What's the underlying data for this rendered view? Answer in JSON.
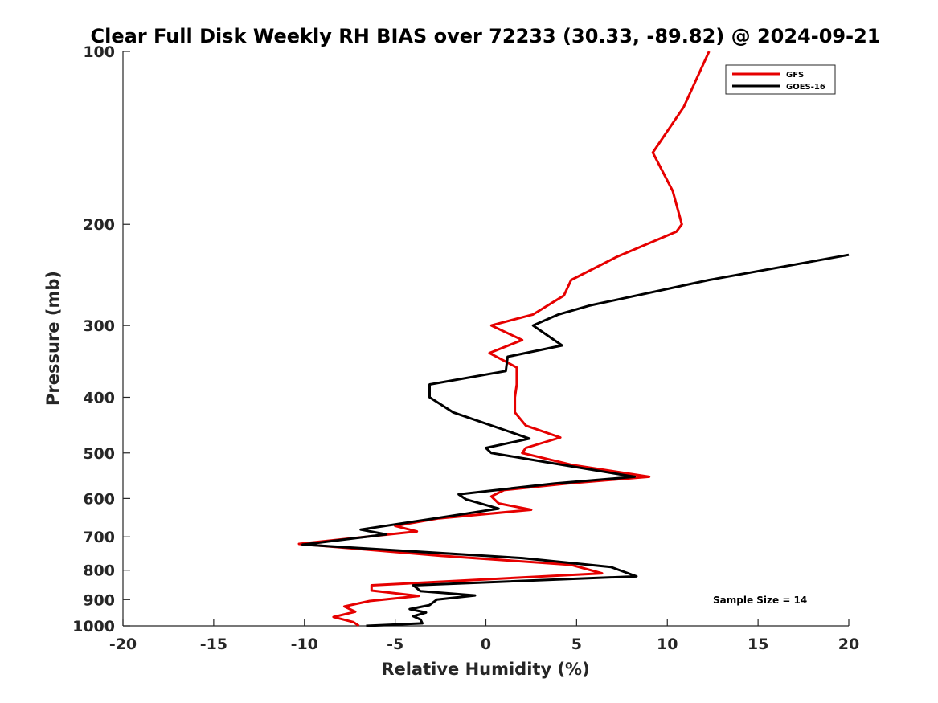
{
  "chart_data": {
    "type": "line",
    "title": "Clear Full Disk Weekly RH BIAS over 72233 (30.33, -89.82) @ 2024-09-21",
    "xlabel": "Relative Humidity (%)",
    "ylabel": "Pressure (mb)",
    "xlim": [
      -20,
      20
    ],
    "ylim": [
      100,
      1000
    ],
    "y_scale": "log",
    "y_reversed": true,
    "x_ticks": [
      -20,
      -15,
      -10,
      -5,
      0,
      5,
      10,
      15,
      20
    ],
    "y_ticks": [
      100,
      200,
      300,
      400,
      500,
      600,
      700,
      800,
      900,
      1000
    ],
    "grid": false,
    "legend_position": "top-right",
    "annotation": "Sample Size = 14",
    "series": [
      {
        "name": "GFS",
        "color": "#e60000",
        "points": [
          [
            12.3,
            100
          ],
          [
            10.9,
            125
          ],
          [
            9.2,
            150
          ],
          [
            10.3,
            175
          ],
          [
            10.8,
            200
          ],
          [
            10.5,
            206
          ],
          [
            7.2,
            228
          ],
          [
            4.7,
            250
          ],
          [
            4.3,
            266
          ],
          [
            2.6,
            287
          ],
          [
            0.3,
            300
          ],
          [
            2.0,
            318
          ],
          [
            0.2,
            335
          ],
          [
            1.7,
            355
          ],
          [
            1.7,
            380
          ],
          [
            1.6,
            400
          ],
          [
            1.6,
            425
          ],
          [
            2.2,
            448
          ],
          [
            4.1,
            470
          ],
          [
            2.2,
            490
          ],
          [
            2.0,
            500
          ],
          [
            4.8,
            525
          ],
          [
            9.0,
            550
          ],
          [
            4.5,
            565
          ],
          [
            1.0,
            580
          ],
          [
            0.3,
            595
          ],
          [
            0.7,
            612
          ],
          [
            2.5,
            628
          ],
          [
            -2.6,
            650
          ],
          [
            -5.0,
            670
          ],
          [
            -3.8,
            685
          ],
          [
            -10.3,
            720
          ],
          [
            -2.5,
            755
          ],
          [
            4.7,
            783
          ],
          [
            6.4,
            810
          ],
          [
            0.0,
            830
          ],
          [
            -6.3,
            850
          ],
          [
            -6.3,
            868
          ],
          [
            -3.7,
            887
          ],
          [
            -6.4,
            905
          ],
          [
            -7.8,
            925
          ],
          [
            -7.2,
            945
          ],
          [
            -8.4,
            965
          ],
          [
            -7.3,
            985
          ],
          [
            -7.0,
            1000
          ]
        ]
      },
      {
        "name": "GOES-16",
        "color": "#000000",
        "points": [
          [
            20.0,
            226
          ],
          [
            12.3,
            250
          ],
          [
            5.7,
            277
          ],
          [
            4.0,
            287
          ],
          [
            2.6,
            300
          ],
          [
            4.2,
            325
          ],
          [
            1.2,
            340
          ],
          [
            1.1,
            360
          ],
          [
            -3.1,
            380
          ],
          [
            -3.1,
            400
          ],
          [
            -1.8,
            425
          ],
          [
            2.4,
            472
          ],
          [
            0.0,
            490
          ],
          [
            0.3,
            500
          ],
          [
            3.5,
            520
          ],
          [
            8.2,
            550
          ],
          [
            3.8,
            565
          ],
          [
            -1.5,
            590
          ],
          [
            -1.1,
            602
          ],
          [
            0.7,
            625
          ],
          [
            -2.8,
            650
          ],
          [
            -6.9,
            680
          ],
          [
            -5.5,
            693
          ],
          [
            -10.1,
            722
          ],
          [
            2.0,
            762
          ],
          [
            6.9,
            790
          ],
          [
            8.3,
            820
          ],
          [
            -4.0,
            850
          ],
          [
            -3.6,
            870
          ],
          [
            -0.6,
            885
          ],
          [
            -2.7,
            900
          ],
          [
            -3.1,
            920
          ],
          [
            -4.2,
            935
          ],
          [
            -3.3,
            948
          ],
          [
            -4.0,
            962
          ],
          [
            -3.6,
            975
          ],
          [
            -3.5,
            990
          ],
          [
            -6.6,
            1000
          ]
        ]
      }
    ]
  }
}
